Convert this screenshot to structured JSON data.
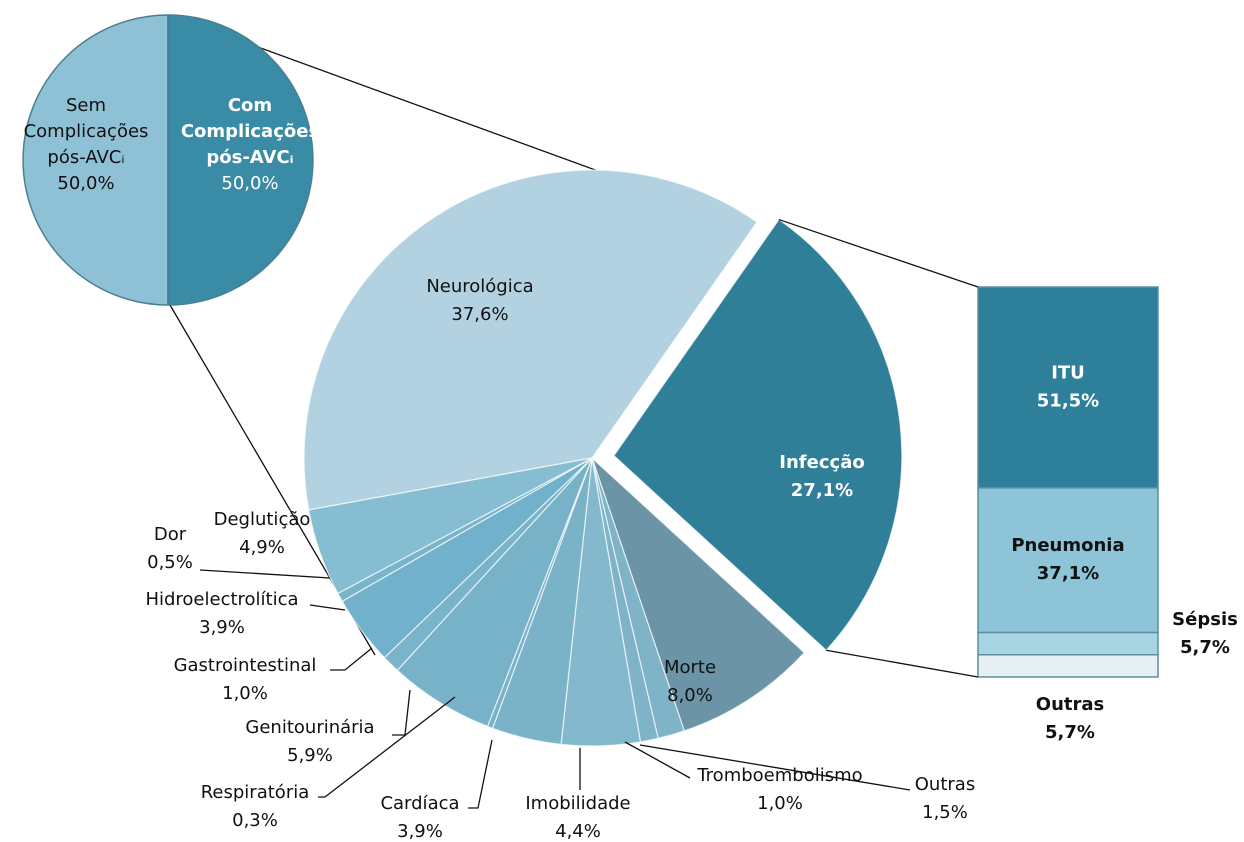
{
  "chart_data": [
    {
      "type": "pie",
      "categories": [
        "Sem Complicações pós-AVCᵢ",
        "Com Complicações pós-AVCᵢ"
      ],
      "values": [
        50,
        50
      ],
      "value_labels": [
        "50,0%",
        "50,0%"
      ],
      "colors": [
        "#8fc1d6",
        "#3a8ba6"
      ]
    },
    {
      "type": "pie",
      "categories": [
        "Neurológica",
        "Infecção",
        "Morte",
        "Outras",
        "Tromboembolismo",
        "Imobilidade",
        "Cardíaca",
        "Respiratória",
        "Genitourinária",
        "Gastrointestinal",
        "Hidroelectrolítica",
        "Dor",
        "Deglutição"
      ],
      "values": [
        37.6,
        27.1,
        8.0,
        1.5,
        1.0,
        4.4,
        3.9,
        0.3,
        5.9,
        1.0,
        3.9,
        0.5,
        4.9
      ],
      "value_labels": [
        "37,6%",
        "27,1%",
        "8,0%",
        "1,5%",
        "1,0%",
        "4,4%",
        "3,9%",
        "0,3%",
        "5,9%",
        "1,0%",
        "3,9%",
        "0,5%",
        "4,9%"
      ],
      "colors": [
        "#b3d2e1",
        "#2f7f99",
        "#6b94a6",
        "#7fb3c8",
        "#7fb3c8",
        "#84b8cd",
        "#7ab2c8",
        "#7ab2c8",
        "#78b2c9",
        "#7ab4ca",
        "#72b1cb",
        "#7ab4ca",
        "#86bdd2"
      ]
    },
    {
      "type": "bar",
      "stacked": true,
      "categories": [
        "ITU",
        "Pneumonia",
        "Sépsis",
        "Outras"
      ],
      "values": [
        51.5,
        37.1,
        5.7,
        5.7
      ],
      "value_labels": [
        "51,5%",
        "37,1%",
        "5,7%",
        "5,7%"
      ],
      "colors": [
        "#2e7f99",
        "#8dc4d7",
        "#a9d4e2",
        "#e6f0f4"
      ]
    }
  ]
}
